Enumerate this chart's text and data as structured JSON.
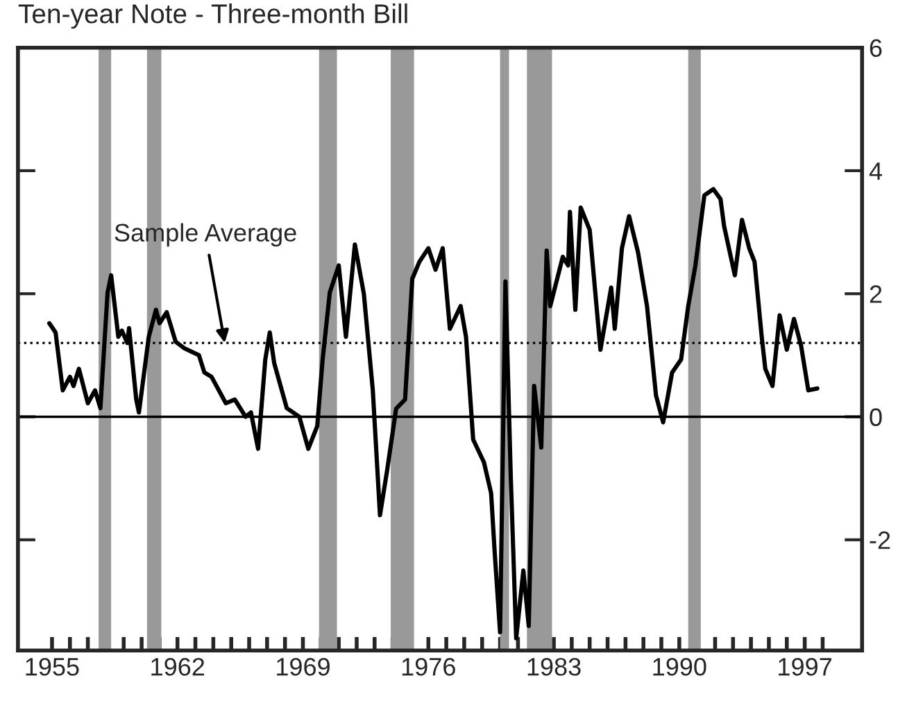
{
  "chart_data": {
    "type": "line",
    "title": "Ten-year Note - Three-month Bill",
    "series": [
      {
        "color": "#000000",
        "x": [
          1954.85,
          1955.2,
          1955.6,
          1956.0,
          1956.2,
          1956.5,
          1957.0,
          1957.4,
          1957.7,
          1958.1,
          1958.3,
          1958.7,
          1958.9,
          1959.2,
          1959.3,
          1959.7,
          1959.85,
          1960.4,
          1960.8,
          1961.0,
          1961.4,
          1961.9,
          1962.4,
          1963.2,
          1963.5,
          1963.9,
          1964.7,
          1965.2,
          1965.8,
          1966.1,
          1966.5,
          1966.9,
          1967.15,
          1967.4,
          1968.1,
          1968.8,
          1969.3,
          1969.8,
          1970.1,
          1970.5,
          1971.0,
          1971.4,
          1971.9,
          1972.4,
          1972.9,
          1973.3,
          1973.7,
          1974.2,
          1974.7,
          1975.1,
          1975.5,
          1976.0,
          1976.4,
          1976.8,
          1977.2,
          1977.8,
          1978.1,
          1978.5,
          1979.1,
          1979.5,
          1979.7,
          1980.0,
          1980.3,
          1980.6,
          1980.9,
          1981.3,
          1981.6,
          1981.9,
          1982.3,
          1982.6,
          1982.8,
          1983.5,
          1983.8,
          1983.9,
          1984.2,
          1984.5,
          1985.0,
          1985.6,
          1986.2,
          1986.4,
          1986.8,
          1987.2,
          1987.7,
          1988.2,
          1988.7,
          1989.1,
          1989.6,
          1990.1,
          1990.5,
          1990.9,
          1991.4,
          1991.9,
          1992.3,
          1992.5,
          1993.1,
          1993.5,
          1993.9,
          1994.2,
          1994.6,
          1994.8,
          1995.2,
          1995.6,
          1996.0,
          1996.4,
          1996.8,
          1997.2,
          1997.7
        ],
        "values": [
          1.52,
          1.37,
          0.43,
          0.65,
          0.5,
          0.78,
          0.22,
          0.43,
          0.14,
          2.02,
          2.3,
          1.3,
          1.4,
          1.2,
          1.44,
          0.28,
          0.07,
          1.3,
          1.74,
          1.52,
          1.7,
          1.22,
          1.11,
          1.0,
          0.72,
          0.65,
          0.22,
          0.28,
          0.0,
          0.07,
          -0.52,
          0.93,
          1.37,
          0.87,
          0.14,
          0.0,
          -0.52,
          -0.15,
          0.93,
          2.02,
          2.46,
          1.3,
          2.8,
          2.0,
          0.43,
          -1.6,
          -0.87,
          0.13,
          0.28,
          2.24,
          2.52,
          2.74,
          2.39,
          2.74,
          1.43,
          1.8,
          1.3,
          -0.37,
          -0.74,
          -1.24,
          -2.2,
          -3.5,
          2.2,
          -1.0,
          -3.6,
          -2.5,
          -3.4,
          0.5,
          -0.5,
          2.7,
          1.8,
          2.6,
          2.46,
          3.33,
          1.74,
          3.4,
          3.04,
          1.09,
          2.1,
          1.43,
          2.74,
          3.26,
          2.67,
          1.8,
          0.35,
          -0.09,
          0.72,
          0.93,
          1.8,
          2.46,
          3.6,
          3.7,
          3.54,
          3.1,
          2.3,
          3.2,
          2.74,
          2.52,
          1.3,
          0.78,
          0.5,
          1.65,
          1.09,
          1.59,
          1.15,
          0.43,
          0.46
        ]
      }
    ],
    "xlim": [
      1953.1,
      2000.2
    ],
    "xticks": [
      1955,
      {
        "value": 1956,
        "label": null
      },
      {
        "value": 1957,
        "label": null
      },
      {
        "value": 1958,
        "label": null
      },
      {
        "value": 1959,
        "label": null
      },
      {
        "value": 1960,
        "label": null
      },
      {
        "value": 1961,
        "label": null
      },
      1962,
      {
        "value": 1963,
        "label": null
      },
      {
        "value": 1964,
        "label": null
      },
      {
        "value": 1965,
        "label": null
      },
      {
        "value": 1966,
        "label": null
      },
      {
        "value": 1967,
        "label": null
      },
      {
        "value": 1968,
        "label": null
      },
      1969,
      {
        "value": 1970,
        "label": null
      },
      {
        "value": 1971,
        "label": null
      },
      {
        "value": 1972,
        "label": null
      },
      {
        "value": 1973,
        "label": null
      },
      {
        "value": 1974,
        "label": null
      },
      {
        "value": 1975,
        "label": null
      },
      1976,
      {
        "value": 1977,
        "label": null
      },
      {
        "value": 1978,
        "label": null
      },
      {
        "value": 1979,
        "label": null
      },
      {
        "value": 1980,
        "label": null
      },
      {
        "value": 1981,
        "label": null
      },
      {
        "value": 1982,
        "label": null
      },
      1983,
      {
        "value": 1984,
        "label": null
      },
      {
        "value": 1985,
        "label": null
      },
      {
        "value": 1986,
        "label": null
      },
      {
        "value": 1987,
        "label": null
      },
      {
        "value": 1988,
        "label": null
      },
      {
        "value": 1989,
        "label": null
      },
      1990,
      {
        "value": 1991,
        "label": null
      },
      {
        "value": 1992,
        "label": null
      },
      {
        "value": 1993,
        "label": null
      },
      {
        "value": 1994,
        "label": null
      },
      {
        "value": 1995,
        "label": null
      },
      {
        "value": 1996,
        "label": null
      },
      1997,
      {
        "value": 1998,
        "label": null
      }
    ],
    "ylim": [
      -3.8,
      6
    ],
    "yticks": [
      -2,
      0,
      2,
      4,
      6
    ],
    "ref_lines": [
      {
        "axis": "y",
        "value": 0,
        "color": "#000000",
        "line_style": "solid"
      },
      {
        "axis": "y",
        "value": 1.2,
        "color": "#000000",
        "line_style": "dotted",
        "label": "Sample Average"
      }
    ],
    "bands": [
      {
        "axis": "x",
        "from": 1957.6,
        "to": 1958.3,
        "color": "#999999"
      },
      {
        "axis": "x",
        "from": 1960.3,
        "to": 1961.1,
        "color": "#999999"
      },
      {
        "axis": "x",
        "from": 1969.9,
        "to": 1970.9,
        "color": "#999999"
      },
      {
        "axis": "x",
        "from": 1973.9,
        "to": 1975.2,
        "color": "#999999"
      },
      {
        "axis": "x",
        "from": 1980.0,
        "to": 1980.5,
        "color": "#999999"
      },
      {
        "axis": "x",
        "from": 1981.5,
        "to": 1982.9,
        "color": "#999999"
      },
      {
        "axis": "x",
        "from": 1990.5,
        "to": 1991.2,
        "color": "#999999"
      }
    ],
    "grid": false,
    "legend": false,
    "line_style": "solid",
    "marker": "none"
  }
}
